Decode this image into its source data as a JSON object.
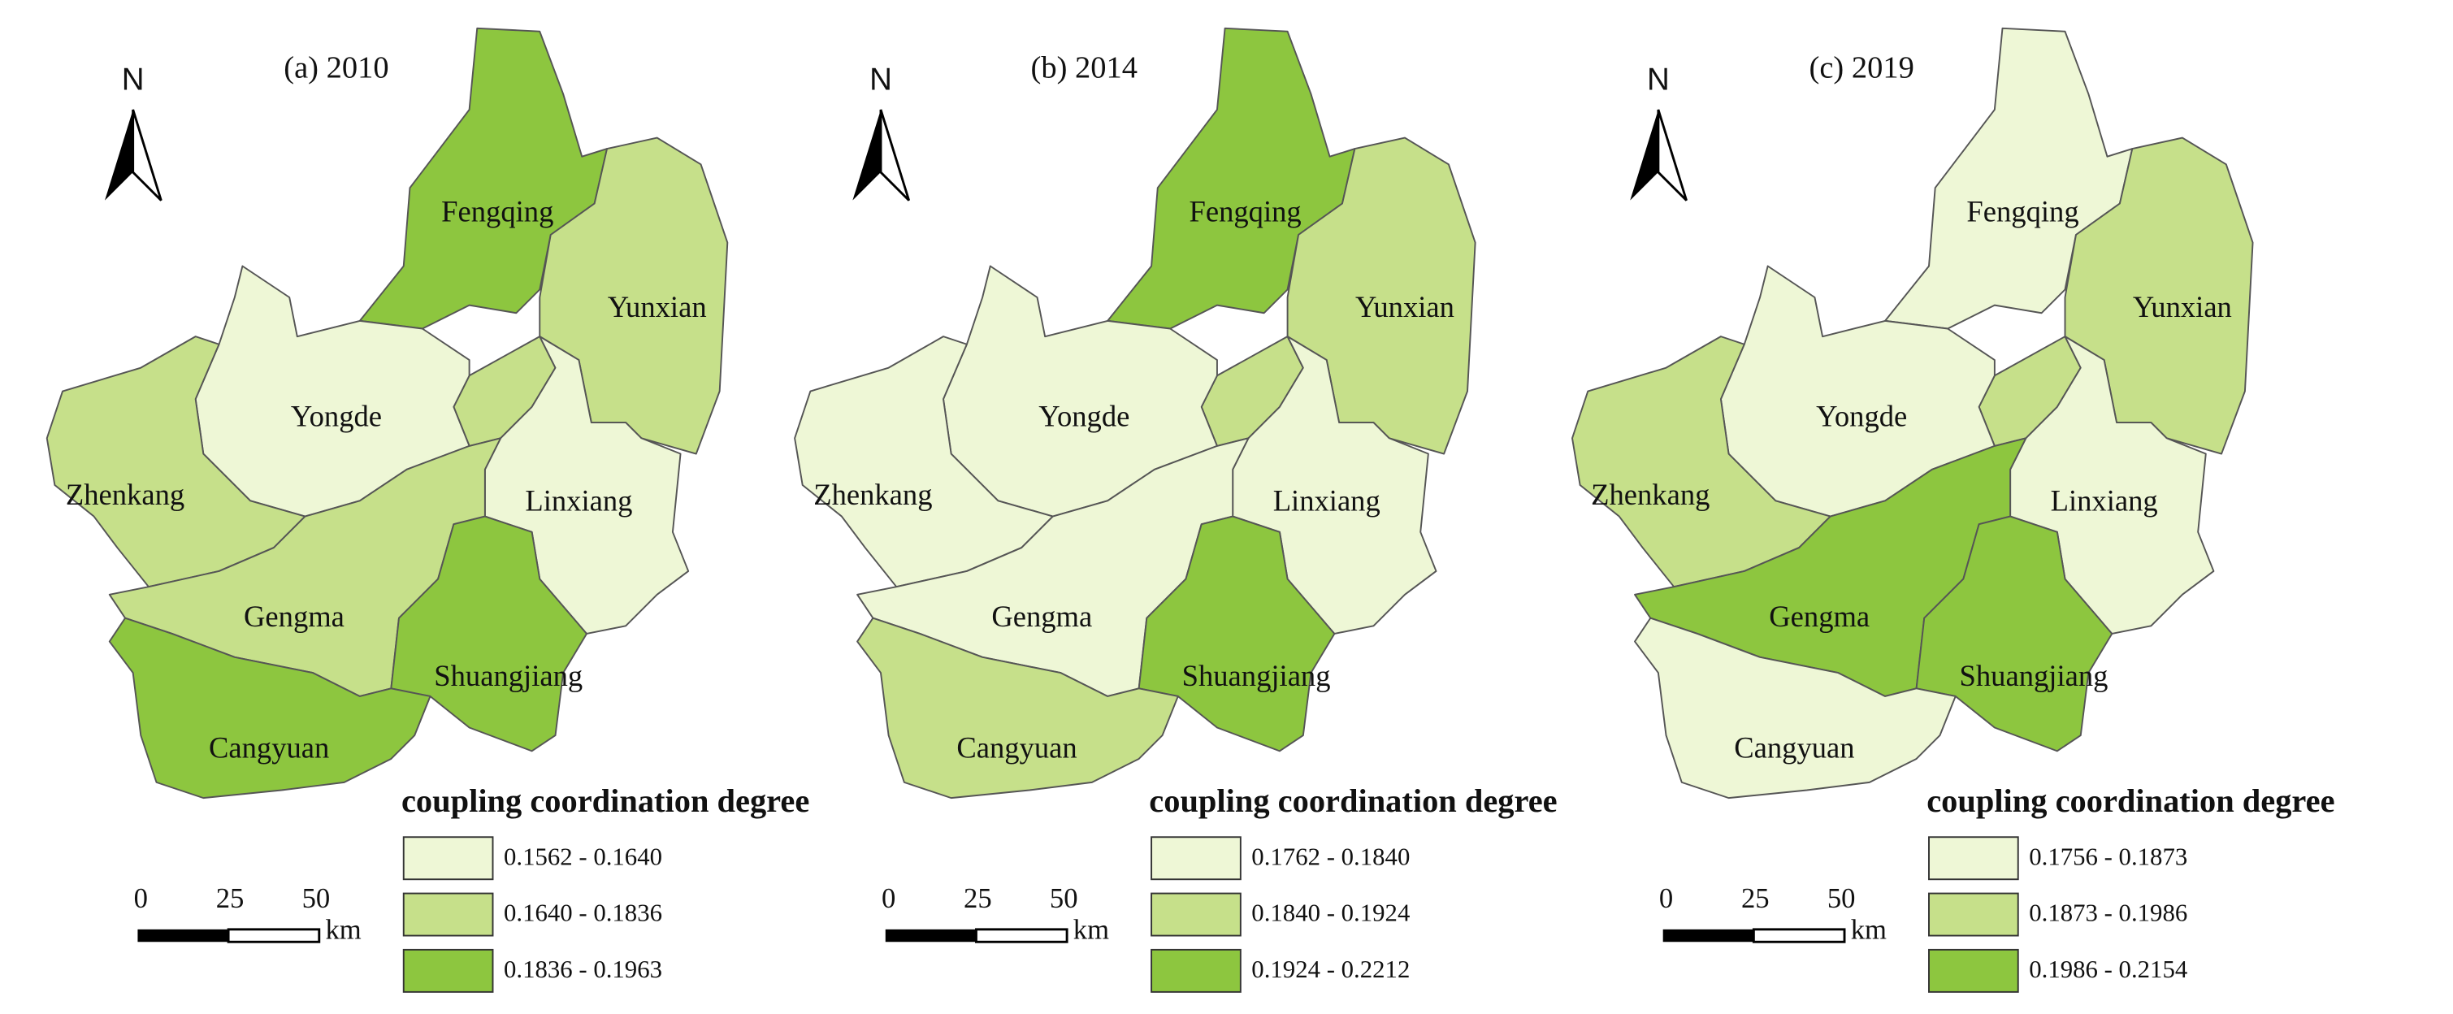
{
  "colors": [
    "#eef7d6",
    "#c6e08a",
    "#8dc63f"
  ],
  "panels": [
    {
      "title": "(a) 2010",
      "north": "N",
      "regions": [
        {
          "name": "Fengqing",
          "class": 2
        },
        {
          "name": "Yunxian",
          "class": 1
        },
        {
          "name": "Yongde",
          "class": 0
        },
        {
          "name": "Zhenkang",
          "class": 1
        },
        {
          "name": "Linxiang",
          "class": 0
        },
        {
          "name": "Gengma",
          "class": 1
        },
        {
          "name": "Shuangjiang",
          "class": 2
        },
        {
          "name": "Cangyuan",
          "class": 2
        }
      ],
      "legend": {
        "title": "coupling coordination degree",
        "classes": [
          "0.1562 - 0.1640",
          "0.1640 - 0.1836",
          "0.1836 - 0.1963"
        ]
      },
      "scale": {
        "ticks": [
          "0",
          "25",
          "50"
        ],
        "unit": "km"
      }
    },
    {
      "title": "(b) 2014",
      "north": "N",
      "regions": [
        {
          "name": "Fengqing",
          "class": 2
        },
        {
          "name": "Yunxian",
          "class": 1
        },
        {
          "name": "Yongde",
          "class": 0
        },
        {
          "name": "Zhenkang",
          "class": 0
        },
        {
          "name": "Linxiang",
          "class": 0
        },
        {
          "name": "Gengma",
          "class": 0
        },
        {
          "name": "Shuangjiang",
          "class": 2
        },
        {
          "name": "Cangyuan",
          "class": 1
        }
      ],
      "legend": {
        "title": "coupling coordination degree",
        "classes": [
          "0.1762 - 0.1840",
          "0.1840 - 0.1924",
          "0.1924 - 0.2212"
        ]
      },
      "scale": {
        "ticks": [
          "0",
          "25",
          "50"
        ],
        "unit": "km"
      }
    },
    {
      "title": "(c) 2019",
      "north": "N",
      "regions": [
        {
          "name": "Fengqing",
          "class": 0
        },
        {
          "name": "Yunxian",
          "class": 1
        },
        {
          "name": "Yongde",
          "class": 0
        },
        {
          "name": "Zhenkang",
          "class": 1
        },
        {
          "name": "Linxiang",
          "class": 0
        },
        {
          "name": "Gengma",
          "class": 2
        },
        {
          "name": "Shuangjiang",
          "class": 2
        },
        {
          "name": "Cangyuan",
          "class": 0
        }
      ],
      "legend": {
        "title": "coupling coordination degree",
        "classes": [
          "0.1756 - 0.1873",
          "0.1873 - 0.1986",
          "0.1986 - 0.2154"
        ]
      },
      "scale": {
        "ticks": [
          "0",
          "25",
          "50"
        ],
        "unit": "km"
      }
    }
  ]
}
